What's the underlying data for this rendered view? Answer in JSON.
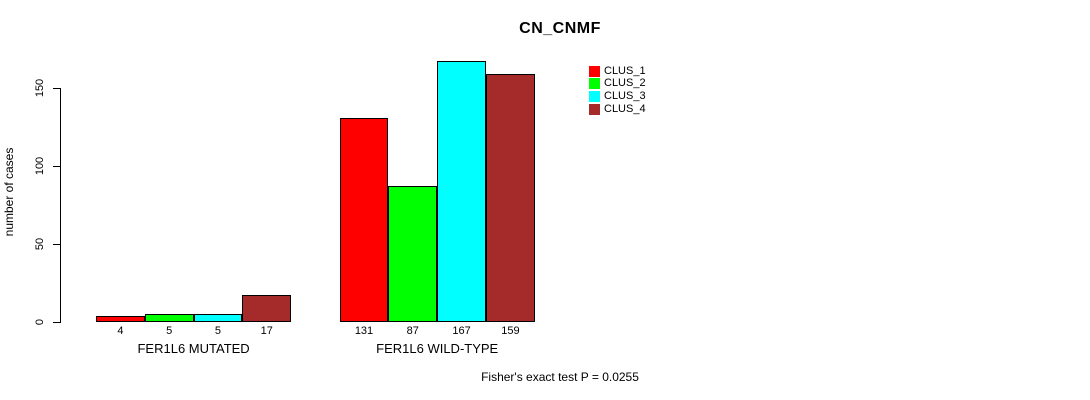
{
  "title": "CN_CNMF",
  "footer": "Fisher's exact test P = 0.0255",
  "chart_data": {
    "type": "bar",
    "title": "CN_CNMF",
    "xlabel": "",
    "ylabel": "number of cases",
    "ylim": [
      0,
      167
    ],
    "yticks": [
      0,
      50,
      100,
      150
    ],
    "grid": false,
    "legend_position": "top-right-inside",
    "categories": [
      "FER1L6 MUTATED",
      "FER1L6 WILD-TYPE"
    ],
    "series": [
      {
        "name": "CLUS_1",
        "color": "#FF0000",
        "values": [
          4,
          131
        ]
      },
      {
        "name": "CLUS_2",
        "color": "#00FF00",
        "values": [
          5,
          87
        ]
      },
      {
        "name": "CLUS_3",
        "color": "#00FFFF",
        "values": [
          5,
          167
        ]
      },
      {
        "name": "CLUS_4",
        "color": "#A52A2A",
        "values": [
          17,
          159
        ]
      }
    ],
    "bar_value_labels_shown": true,
    "annotation": "Fisher's exact test P = 0.0255"
  }
}
